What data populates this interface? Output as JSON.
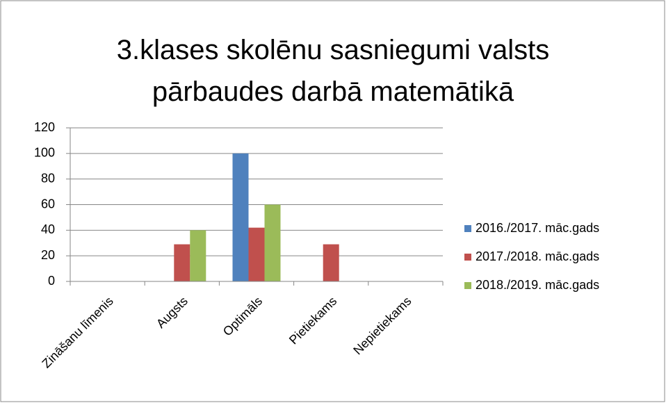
{
  "chart_data": {
    "type": "bar",
    "title": "3.klases skolēnu sasniegumi valsts pārbaudes darbā matemātikā",
    "categories": [
      "Zināšanu līmenis",
      "Augsts",
      "Optimāls",
      "Pietiekams",
      "Nepietiekams"
    ],
    "series": [
      {
        "name": "2016./2017. māc.gads",
        "color": "#4f81bd",
        "values": [
          0,
          0,
          100,
          0,
          0
        ]
      },
      {
        "name": "2017./2018. māc.gads",
        "color": "#c0504d",
        "values": [
          0,
          29,
          42,
          29,
          0
        ]
      },
      {
        "name": "2018./2019. māc.gads",
        "color": "#9bbb59",
        "values": [
          0,
          40,
          60,
          0,
          0
        ]
      }
    ],
    "ylim": [
      0,
      120
    ],
    "yticks": [
      0,
      20,
      40,
      60,
      80,
      100,
      120
    ],
    "grid": true,
    "legend": "right"
  }
}
